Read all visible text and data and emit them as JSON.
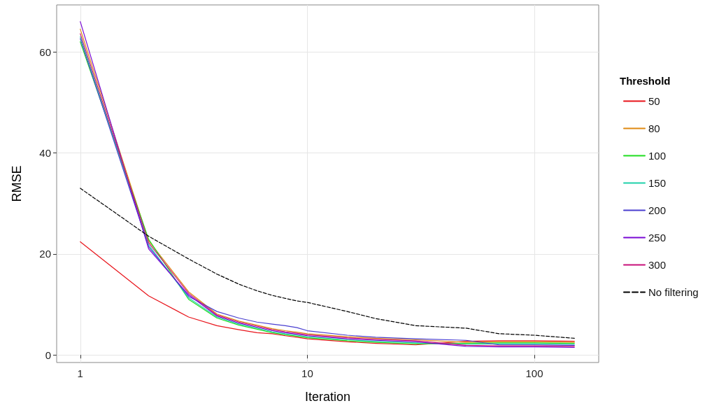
{
  "chart_data": {
    "type": "line",
    "xlabel": "Iteration",
    "ylabel": "RMSE",
    "legend_title": "Threshold",
    "log": "x",
    "grid": true,
    "legend": "right",
    "line_style": "solid",
    "marker": "none",
    "x": [
      1,
      2,
      3,
      4,
      5,
      6,
      7,
      8,
      9,
      10,
      15,
      20,
      30,
      50,
      70,
      100,
      150
    ],
    "xlim": [
      0.787,
      192
    ],
    "xticks": [
      1,
      10,
      100
    ],
    "ylim": [
      -1.5,
      69.3
    ],
    "yticks": [
      0,
      20,
      40,
      60
    ],
    "series": [
      {
        "name": "50",
        "color": "#e8141b",
        "values": [
          22.4,
          11.7,
          7.5,
          5.8,
          5.0,
          4.4,
          4.2,
          3.8,
          3.5,
          3.2,
          2.6,
          2.3,
          2.0,
          2.7,
          2.8,
          2.8,
          2.7
        ]
      },
      {
        "name": "80",
        "color": "#e08a12",
        "values": [
          64.5,
          22.6,
          12.5,
          8.1,
          6.7,
          5.9,
          5.2,
          4.8,
          4.5,
          4.2,
          3.6,
          3.3,
          3.0,
          2.5,
          2.6,
          2.6,
          2.5
        ]
      },
      {
        "name": "100",
        "color": "#1fdd1f",
        "values": [
          62.0,
          22.9,
          11.0,
          7.3,
          5.9,
          5.1,
          4.4,
          4.0,
          3.7,
          3.4,
          2.8,
          2.5,
          2.2,
          2.3,
          2.4,
          2.4,
          2.3
        ]
      },
      {
        "name": "150",
        "color": "#1fd1aa",
        "values": [
          63.0,
          21.8,
          11.3,
          7.5,
          6.1,
          5.3,
          4.6,
          4.2,
          3.9,
          3.6,
          3.0,
          2.7,
          2.4,
          2.1,
          2.2,
          2.2,
          2.1
        ]
      },
      {
        "name": "200",
        "color": "#4a3fd0",
        "values": [
          62.6,
          21.4,
          11.6,
          8.6,
          7.3,
          6.5,
          6.1,
          5.8,
          5.4,
          4.8,
          3.9,
          3.5,
          3.2,
          2.9,
          2.0,
          2.0,
          1.9
        ]
      },
      {
        "name": "250",
        "color": "#7a0ad4",
        "values": [
          66.0,
          21.0,
          11.9,
          7.7,
          6.3,
          5.5,
          4.8,
          4.4,
          4.1,
          3.8,
          3.2,
          2.9,
          2.6,
          1.7,
          1.6,
          1.6,
          1.5
        ]
      },
      {
        "name": "300",
        "color": "#c8107a",
        "values": [
          63.6,
          22.2,
          12.2,
          7.9,
          6.5,
          5.7,
          5.0,
          4.6,
          4.3,
          4.0,
          3.4,
          3.1,
          2.8,
          1.9,
          1.8,
          1.8,
          1.7
        ]
      },
      {
        "name": "No filtering",
        "color": "#000000",
        "line_style": "dashed",
        "values": [
          33.0,
          23.5,
          19.0,
          16.0,
          14.0,
          12.7,
          11.8,
          11.2,
          10.7,
          10.4,
          8.6,
          7.2,
          5.8,
          5.3,
          4.2,
          3.9,
          3.3
        ]
      }
    ]
  }
}
